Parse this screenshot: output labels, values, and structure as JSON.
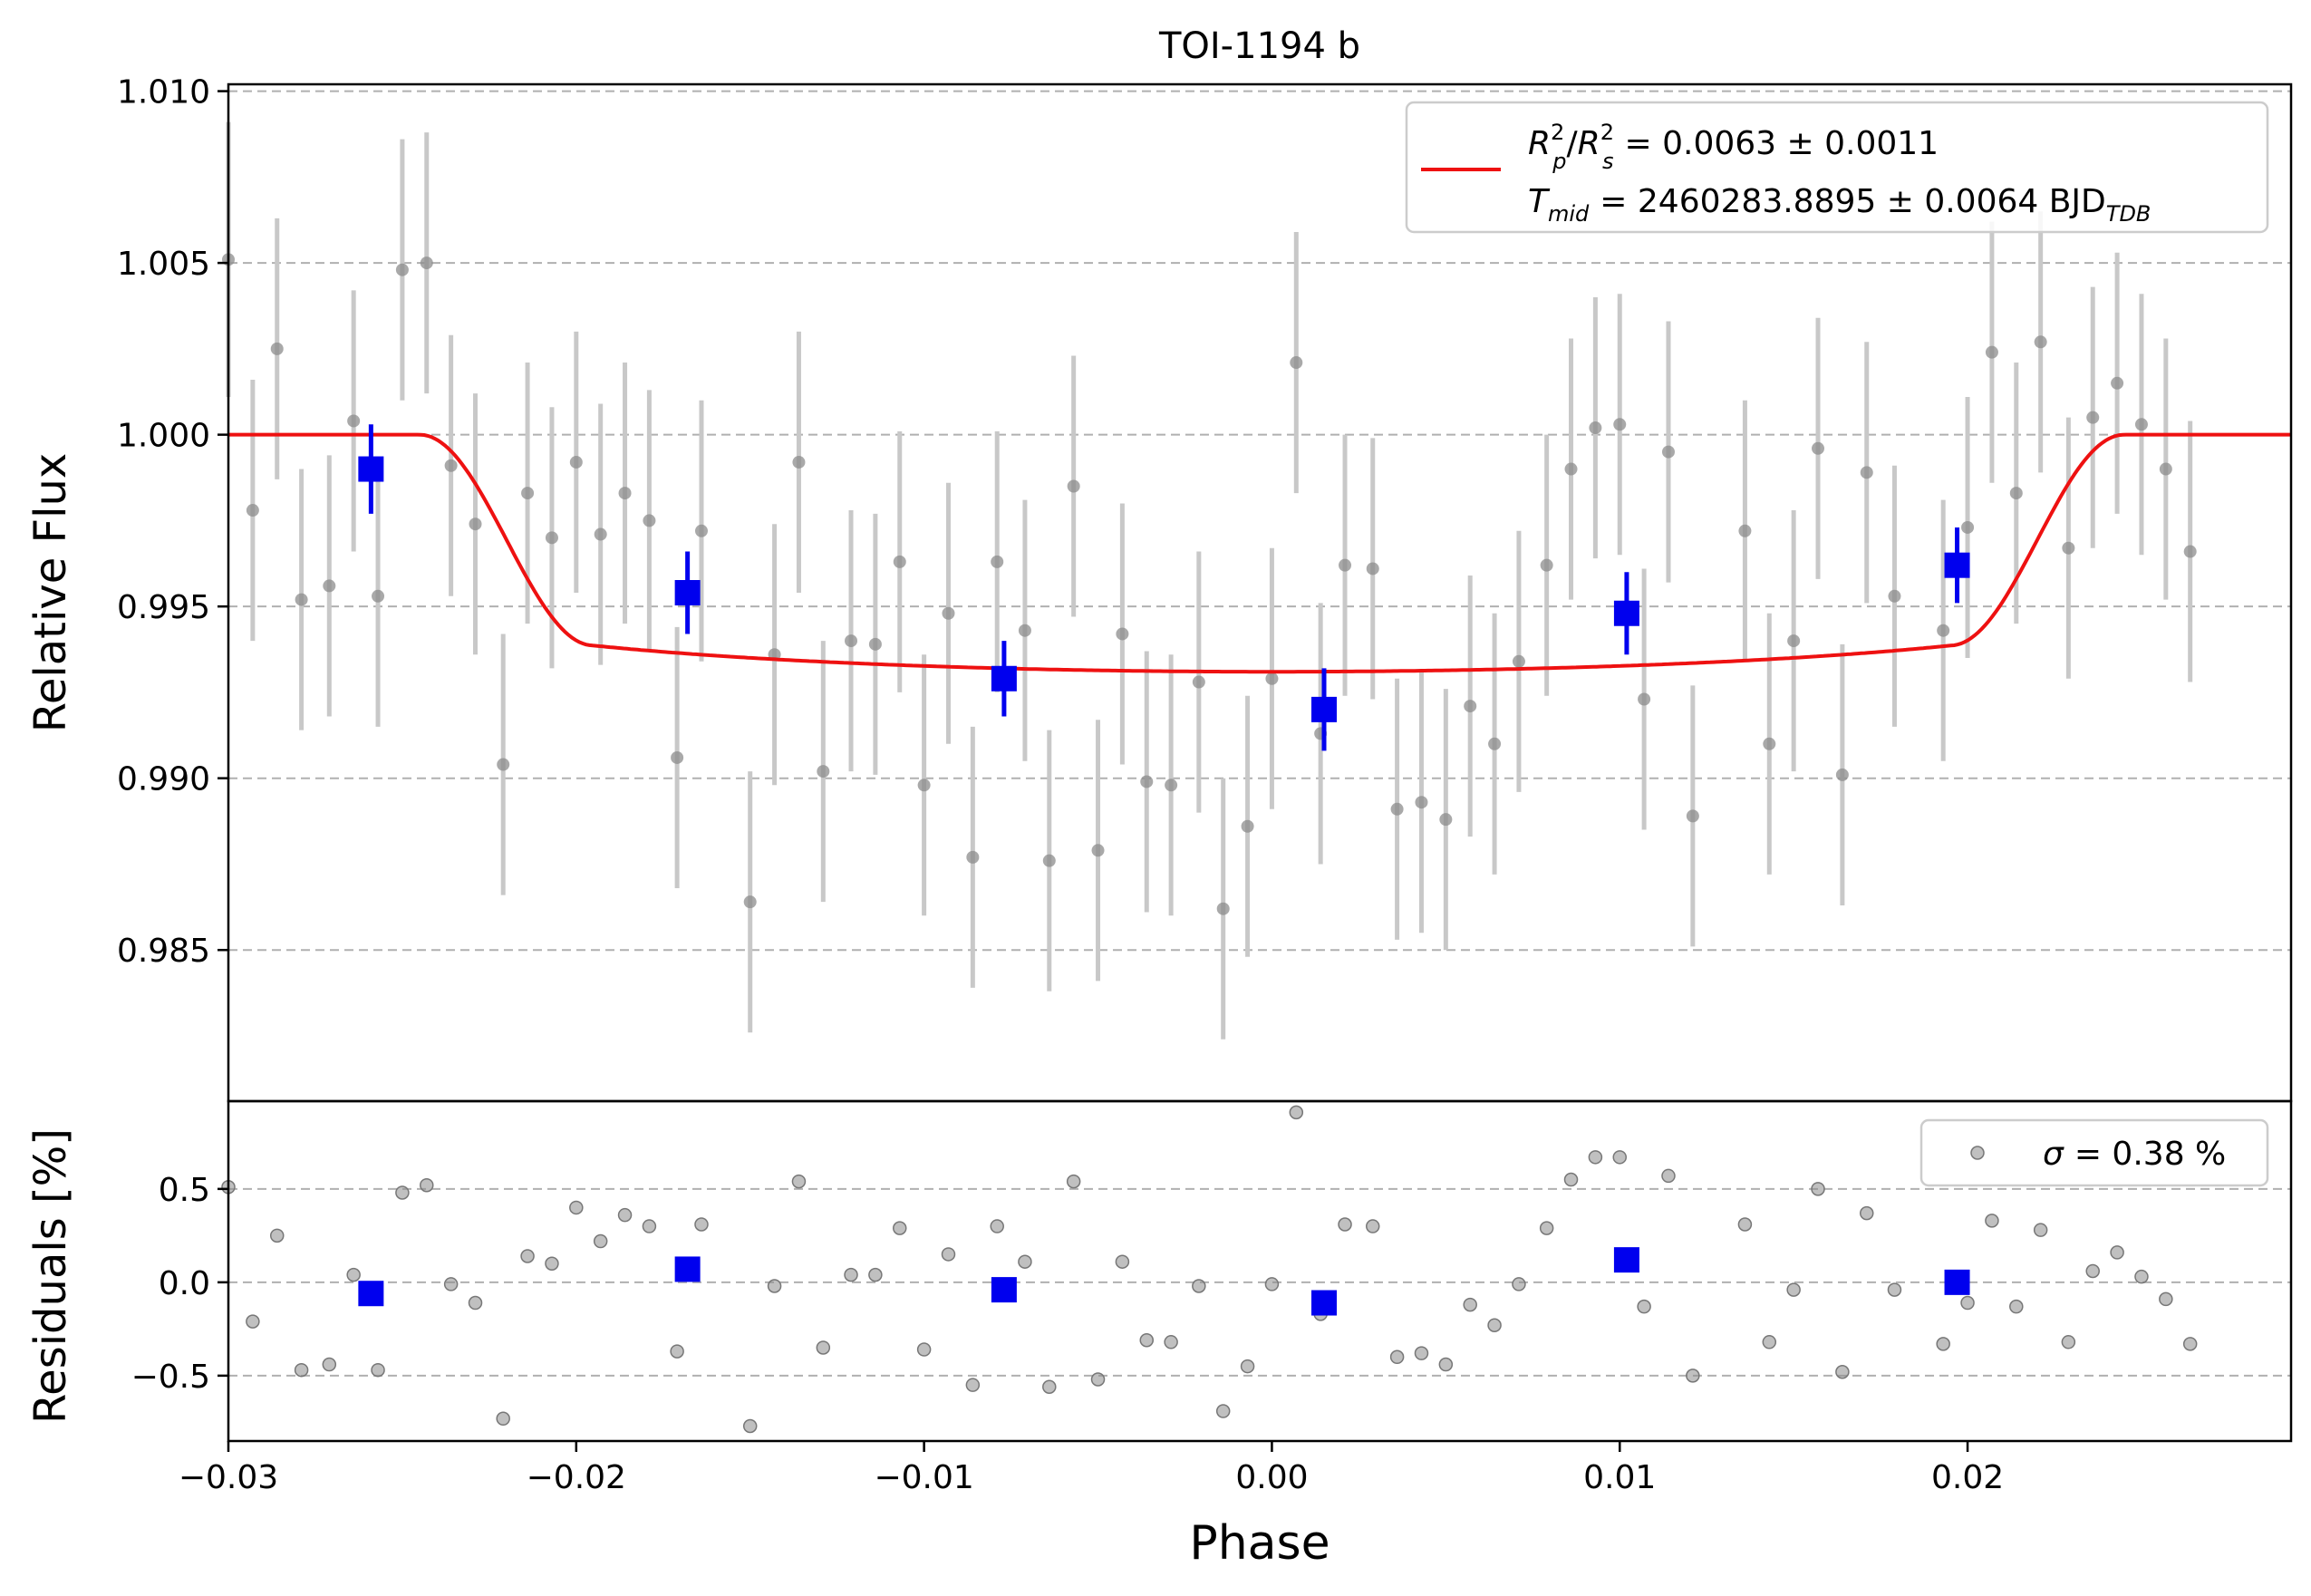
{
  "chart_data": [
    {
      "type": "scatter",
      "panel": "top",
      "title": "TOI-1194 b",
      "xlabel": "",
      "ylabel": "Relative Flux",
      "xlim": [
        -0.03,
        0.0293
      ],
      "ylim": [
        0.9806,
        1.0102
      ],
      "yticks": [
        0.985,
        0.99,
        0.995,
        1.0,
        1.005,
        1.01
      ],
      "ytick_labels": [
        "0.985",
        "0.990",
        "0.995",
        "1.000",
        "1.005",
        "1.010"
      ],
      "grid": "horizontal dashed",
      "legend_position": "top-right",
      "legend": {
        "model_label_main": "R",
        "model_label_text": "= 0.0063 ± 0.0011",
        "tmid_main": "T",
        "tmid_sub": "mid",
        "tmid_text": "= 2460283.8895 ± 0.0064 BJD",
        "tmid_unit_sub": "TDB"
      },
      "colors": {
        "raw": "#8c8c8c",
        "errorbar": "#c8c8c8",
        "binned": "#0000ee",
        "model": "#ee1111",
        "grid": "#b0b0b0"
      },
      "series": [
        {
          "kind": "raw",
          "points": [
            [
              -0.03,
              1.0051,
              0.004
            ],
            [
              -0.0293,
              0.9978,
              0.0038
            ],
            [
              -0.0286,
              1.0025,
              0.0038
            ],
            [
              -0.0279,
              0.9952,
              0.0038
            ],
            [
              -0.0271,
              0.9956,
              0.0038
            ],
            [
              -0.0264,
              1.0004,
              0.0038
            ],
            [
              -0.0257,
              0.9953,
              0.0038
            ],
            [
              -0.025,
              1.0048,
              0.0038
            ],
            [
              -0.0243,
              1.005,
              0.0038
            ],
            [
              -0.0236,
              0.9991,
              0.0038
            ],
            [
              -0.0229,
              0.9974,
              0.0038
            ],
            [
              -0.0221,
              0.9904,
              0.0038
            ],
            [
              -0.0214,
              0.9983,
              0.0038
            ],
            [
              -0.0207,
              0.997,
              0.0038
            ],
            [
              -0.02,
              0.9992,
              0.0038
            ],
            [
              -0.0193,
              0.9971,
              0.0038
            ],
            [
              -0.0186,
              0.9983,
              0.0038
            ],
            [
              -0.0179,
              0.9975,
              0.0038
            ],
            [
              -0.0171,
              0.9906,
              0.0038
            ],
            [
              -0.0164,
              0.9972,
              0.0038
            ],
            [
              -0.015,
              0.9864,
              0.0038
            ],
            [
              -0.0143,
              0.9936,
              0.0038
            ],
            [
              -0.0136,
              0.9992,
              0.0038
            ],
            [
              -0.0129,
              0.9902,
              0.0038
            ],
            [
              -0.0121,
              0.994,
              0.0038
            ],
            [
              -0.0114,
              0.9939,
              0.0038
            ],
            [
              -0.0107,
              0.9963,
              0.0038
            ],
            [
              -0.01,
              0.9898,
              0.0038
            ],
            [
              -0.0093,
              0.9948,
              0.0038
            ],
            [
              -0.0086,
              0.9877,
              0.0038
            ],
            [
              -0.0079,
              0.9963,
              0.0038
            ],
            [
              -0.0071,
              0.9943,
              0.0038
            ],
            [
              -0.0064,
              0.9876,
              0.0038
            ],
            [
              -0.0057,
              0.9985,
              0.0038
            ],
            [
              -0.005,
              0.9879,
              0.0038
            ],
            [
              -0.0043,
              0.9942,
              0.0038
            ],
            [
              -0.0036,
              0.9899,
              0.0038
            ],
            [
              -0.0029,
              0.9898,
              0.0038
            ],
            [
              -0.0021,
              0.9928,
              0.0038
            ],
            [
              -0.0014,
              0.9862,
              0.0038
            ],
            [
              -0.0007,
              0.9886,
              0.0038
            ],
            [
              0.0,
              0.9929,
              0.0038
            ],
            [
              0.0007,
              1.0021,
              0.0038
            ],
            [
              0.0014,
              0.9913,
              0.0038
            ],
            [
              0.0021,
              0.9962,
              0.0038
            ],
            [
              0.0029,
              0.9961,
              0.0038
            ],
            [
              0.0036,
              0.9891,
              0.0038
            ],
            [
              0.0043,
              0.9893,
              0.0038
            ],
            [
              0.005,
              0.9888,
              0.0038
            ],
            [
              0.0057,
              0.9921,
              0.0038
            ],
            [
              0.0064,
              0.991,
              0.0038
            ],
            [
              0.0071,
              0.9934,
              0.0038
            ],
            [
              0.0079,
              0.9962,
              0.0038
            ],
            [
              0.0086,
              0.999,
              0.0038
            ],
            [
              0.0093,
              1.0002,
              0.0038
            ],
            [
              0.01,
              1.0003,
              0.0038
            ],
            [
              0.0107,
              0.9923,
              0.0038
            ],
            [
              0.0114,
              0.9995,
              0.0038
            ],
            [
              0.0121,
              0.9889,
              0.0038
            ],
            [
              0.0136,
              0.9972,
              0.0038
            ],
            [
              0.0143,
              0.991,
              0.0038
            ],
            [
              0.015,
              0.994,
              0.0038
            ],
            [
              0.0157,
              0.9996,
              0.0038
            ],
            [
              0.0164,
              0.9901,
              0.0038
            ],
            [
              0.0171,
              0.9989,
              0.0038
            ],
            [
              0.0179,
              0.9953,
              0.0038
            ],
            [
              0.0193,
              0.9943,
              0.0038
            ],
            [
              0.02,
              0.9973,
              0.0038
            ],
            [
              0.0207,
              1.0024,
              0.0038
            ],
            [
              0.0214,
              0.9983,
              0.0038
            ],
            [
              0.0221,
              1.0027,
              0.0038
            ],
            [
              0.0229,
              0.9967,
              0.0038
            ],
            [
              0.0236,
              1.0005,
              0.0038
            ],
            [
              0.0243,
              1.0015,
              0.0038
            ],
            [
              0.025,
              1.0003,
              0.0038
            ],
            [
              0.0257,
              0.999,
              0.0038
            ],
            [
              0.0264,
              0.9966,
              0.0038
            ]
          ]
        },
        {
          "kind": "binned",
          "points": [
            [
              -0.0259,
              0.999,
              0.0013
            ],
            [
              -0.0168,
              0.9954,
              0.0012
            ],
            [
              -0.0077,
              0.9929,
              0.0011
            ],
            [
              0.0015,
              0.992,
              0.0012
            ],
            [
              0.0102,
              0.9948,
              0.0012
            ],
            [
              0.0197,
              0.9962,
              0.0011
            ]
          ]
        },
        {
          "kind": "model",
          "depth": 0.0069,
          "t1": 0.0245,
          "t2": 0.0195,
          "baseline": 1.0
        }
      ]
    },
    {
      "type": "scatter",
      "panel": "bottom",
      "xlabel": "Phase",
      "ylabel": "Residuals [%]",
      "xlim": [
        -0.03,
        0.0293
      ],
      "ylim": [
        -0.85,
        0.97
      ],
      "xticks": [
        -0.03,
        -0.02,
        -0.01,
        0.0,
        0.01,
        0.02
      ],
      "xtick_labels": [
        "−0.03",
        "−0.02",
        "−0.01",
        "0.00",
        "0.01",
        "0.02"
      ],
      "yticks": [
        -0.5,
        0.0,
        0.5
      ],
      "ytick_labels": [
        "−0.5",
        "0.0",
        "0.5"
      ],
      "grid": "horizontal dashed",
      "legend_position": "top-right",
      "legend": {
        "sigma_symbol": "σ",
        "sigma_text": "= 0.38 %"
      },
      "series": [
        {
          "kind": "raw",
          "points": [
            [
              -0.03,
              0.51
            ],
            [
              -0.0293,
              -0.21
            ],
            [
              -0.0286,
              0.25
            ],
            [
              -0.0279,
              -0.47
            ],
            [
              -0.0271,
              -0.44
            ],
            [
              -0.0264,
              0.04
            ],
            [
              -0.0257,
              -0.47
            ],
            [
              -0.025,
              0.48
            ],
            [
              -0.0243,
              0.52
            ],
            [
              -0.0236,
              -0.01
            ],
            [
              -0.0229,
              -0.11
            ],
            [
              -0.0221,
              -0.73
            ],
            [
              -0.0214,
              0.14
            ],
            [
              -0.0207,
              0.1
            ],
            [
              -0.02,
              0.4
            ],
            [
              -0.0193,
              0.22
            ],
            [
              -0.0186,
              0.36
            ],
            [
              -0.0179,
              0.3
            ],
            [
              -0.0171,
              -0.37
            ],
            [
              -0.0164,
              0.31
            ],
            [
              -0.015,
              -0.77
            ],
            [
              -0.0143,
              -0.02
            ],
            [
              -0.0136,
              0.54
            ],
            [
              -0.0129,
              -0.35
            ],
            [
              -0.0121,
              0.04
            ],
            [
              -0.0114,
              0.04
            ],
            [
              -0.0107,
              0.29
            ],
            [
              -0.01,
              -0.36
            ],
            [
              -0.0093,
              0.15
            ],
            [
              -0.0086,
              -0.55
            ],
            [
              -0.0079,
              0.3
            ],
            [
              -0.0071,
              0.11
            ],
            [
              -0.0064,
              -0.56
            ],
            [
              -0.0057,
              0.54
            ],
            [
              -0.005,
              -0.52
            ],
            [
              -0.0043,
              0.11
            ],
            [
              -0.0036,
              -0.31
            ],
            [
              -0.0029,
              -0.32
            ],
            [
              -0.0021,
              -0.02
            ],
            [
              -0.0014,
              -0.69
            ],
            [
              -0.0007,
              -0.45
            ],
            [
              0.0,
              -0.01
            ],
            [
              0.0007,
              0.91
            ],
            [
              0.0014,
              -0.17
            ],
            [
              0.0021,
              0.31
            ],
            [
              0.0029,
              0.3
            ],
            [
              0.0036,
              -0.4
            ],
            [
              0.0043,
              -0.38
            ],
            [
              0.005,
              -0.44
            ],
            [
              0.0057,
              -0.12
            ],
            [
              0.0064,
              -0.23
            ],
            [
              0.0071,
              -0.01
            ],
            [
              0.0079,
              0.29
            ],
            [
              0.0086,
              0.55
            ],
            [
              0.0093,
              0.67
            ],
            [
              0.01,
              0.67
            ],
            [
              0.0107,
              -0.13
            ],
            [
              0.0114,
              0.57
            ],
            [
              0.0121,
              -0.5
            ],
            [
              0.0136,
              0.31
            ],
            [
              0.0143,
              -0.32
            ],
            [
              0.015,
              -0.04
            ],
            [
              0.0157,
              0.5
            ],
            [
              0.0164,
              -0.48
            ],
            [
              0.0171,
              0.37
            ],
            [
              0.0179,
              -0.04
            ],
            [
              0.0193,
              -0.33
            ],
            [
              0.02,
              -0.11
            ],
            [
              0.0207,
              0.33
            ],
            [
              0.0214,
              -0.13
            ],
            [
              0.0221,
              0.28
            ],
            [
              0.0229,
              -0.32
            ],
            [
              0.0236,
              0.06
            ],
            [
              0.0243,
              0.16
            ],
            [
              0.025,
              0.03
            ],
            [
              0.0257,
              -0.09
            ],
            [
              0.0264,
              -0.33
            ]
          ]
        },
        {
          "kind": "binned",
          "points": [
            [
              -0.0259,
              -0.06
            ],
            [
              -0.0168,
              0.07
            ],
            [
              -0.0077,
              -0.04
            ],
            [
              0.0015,
              -0.11
            ],
            [
              0.0102,
              0.12
            ],
            [
              0.0197,
              0.0
            ]
          ]
        }
      ]
    }
  ]
}
